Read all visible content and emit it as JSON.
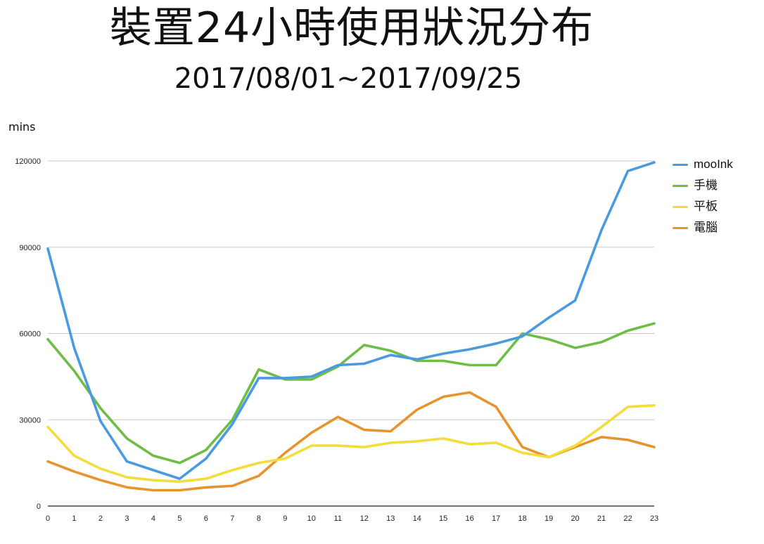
{
  "chart_data": {
    "type": "line",
    "title": "裝置24小時使用狀況分布",
    "subtitle": "2017/08/01~2017/09/25",
    "xlabel": "",
    "ylabel": "mins",
    "x": [
      0,
      1,
      2,
      3,
      4,
      5,
      6,
      7,
      8,
      9,
      10,
      11,
      12,
      13,
      14,
      15,
      16,
      17,
      18,
      19,
      20,
      21,
      22,
      23
    ],
    "xlim": [
      0,
      23
    ],
    "ylim": [
      0,
      120000
    ],
    "yticks": [
      0,
      30000,
      60000,
      90000,
      120000
    ],
    "grid": true,
    "legend_position": "right",
    "series": [
      {
        "name": "mooInk",
        "color": "#4a9ae0",
        "values": [
          89500,
          55000,
          29500,
          15500,
          12500,
          9500,
          16500,
          28500,
          44500,
          44500,
          45000,
          49000,
          49500,
          52500,
          51000,
          53000,
          54500,
          56500,
          59000,
          65500,
          71500,
          96000,
          116500,
          119500
        ]
      },
      {
        "name": "手機",
        "color": "#6ebd45",
        "values": [
          58000,
          47000,
          34000,
          23500,
          17500,
          15000,
          19500,
          30000,
          47500,
          44000,
          44000,
          48500,
          56000,
          54000,
          50500,
          50500,
          49000,
          49000,
          60000,
          58000,
          55000,
          57000,
          61000,
          63500
        ]
      },
      {
        "name": "平板",
        "color": "#f3dd3c",
        "values": [
          27500,
          17500,
          13000,
          10000,
          9000,
          8500,
          9500,
          12500,
          15000,
          16500,
          21000,
          21000,
          20500,
          22000,
          22500,
          23500,
          21500,
          22000,
          18500,
          17000,
          21000,
          27500,
          34500,
          35000
        ]
      },
      {
        "name": "電腦",
        "color": "#e8942e",
        "values": [
          15500,
          12000,
          9000,
          6500,
          5500,
          5500,
          6500,
          7000,
          10500,
          18500,
          25500,
          31000,
          26500,
          26000,
          33500,
          38000,
          39500,
          34500,
          20500,
          17000,
          20500,
          24000,
          23000,
          20500
        ]
      }
    ]
  }
}
